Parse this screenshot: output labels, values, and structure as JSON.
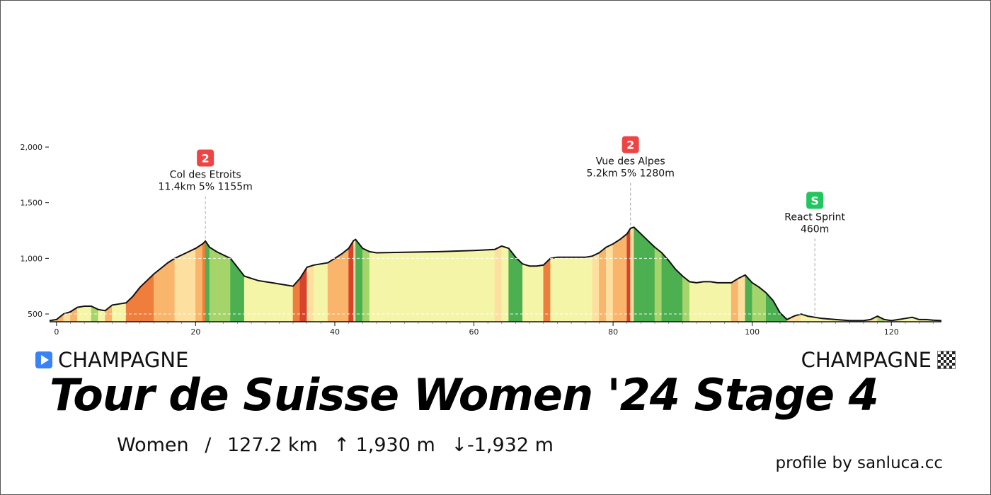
{
  "start": {
    "name": "CHAMPAGNE",
    "icon": "start-flag-icon"
  },
  "finish": {
    "name": "CHAMPAGNE",
    "icon": "checkered-flag-icon"
  },
  "title": "Tour de Suisse Women '24 Stage 4",
  "stats": {
    "category": "Women",
    "separator": "/",
    "distance": "127.2 km",
    "ascent": "↑ 1,930 m",
    "descent": "↓-1,932 m"
  },
  "credit": "profile by sanluca.cc",
  "chart_data": {
    "type": "area",
    "title": "",
    "xlabel": "",
    "ylabel": "",
    "xlim": [
      -1,
      127.2
    ],
    "ylim": [
      420,
      2000
    ],
    "x_ticks": [
      0,
      20,
      40,
      60,
      80,
      100,
      120
    ],
    "y_ticks": [
      500,
      1000,
      1500,
      2000
    ],
    "y_tick_labels": [
      "500",
      "1,000",
      "1,500",
      "2,000"
    ],
    "grid": "horizontal dashed",
    "series": [
      {
        "x": [
          -1,
          0,
          1,
          2,
          3,
          4,
          5,
          6,
          7,
          8,
          9,
          10,
          11,
          12,
          13,
          14,
          15,
          16,
          17,
          18,
          19,
          20,
          21,
          21.4,
          22,
          23,
          24,
          25,
          26,
          27,
          28,
          29,
          30,
          31,
          32,
          33,
          34,
          35,
          36,
          37,
          38,
          39,
          40,
          41,
          42,
          42.7,
          43,
          44,
          45,
          46,
          50,
          55,
          60,
          63,
          64,
          65,
          66,
          67,
          68,
          69,
          70,
          71,
          72,
          73,
          74,
          75,
          76,
          77,
          78,
          79,
          80,
          81,
          82,
          82.5,
          83,
          84,
          85,
          86,
          87,
          88,
          89,
          90,
          91,
          92,
          93,
          94,
          95,
          96,
          97,
          98,
          99,
          100,
          101,
          102,
          103,
          104,
          105,
          106,
          107,
          108,
          109,
          110,
          112,
          114,
          116,
          117,
          118,
          119,
          120,
          121,
          122,
          123,
          124,
          125,
          126,
          127.2
        ],
        "y": [
          440,
          450,
          500,
          520,
          560,
          570,
          570,
          540,
          530,
          580,
          590,
          600,
          660,
          740,
          800,
          860,
          910,
          960,
          1000,
          1030,
          1060,
          1090,
          1130,
          1155,
          1100,
          1060,
          1030,
          1000,
          920,
          840,
          820,
          800,
          790,
          780,
          770,
          760,
          750,
          820,
          920,
          940,
          950,
          960,
          1000,
          1040,
          1090,
          1160,
          1170,
          1090,
          1060,
          1050,
          1055,
          1060,
          1070,
          1080,
          1110,
          1090,
          1010,
          950,
          930,
          930,
          940,
          1000,
          1010,
          1010,
          1010,
          1010,
          1010,
          1020,
          1050,
          1100,
          1130,
          1170,
          1220,
          1270,
          1280,
          1220,
          1160,
          1100,
          1050,
          980,
          900,
          840,
          790,
          780,
          790,
          790,
          780,
          780,
          780,
          820,
          850,
          780,
          740,
          690,
          620,
          510,
          450,
          480,
          500,
          480,
          470,
          460,
          450,
          440,
          440,
          450,
          480,
          450,
          440,
          450,
          460,
          470,
          450,
          450,
          445,
          440
        ]
      }
    ],
    "climb_categories": [
      {
        "x": 21.4,
        "category": "2",
        "name": "Col des Etroits",
        "detail": "11.4km 5% 1155m",
        "color": "#ef4444",
        "label_y": 1800
      },
      {
        "x": 82.5,
        "category": "2",
        "name": "Vue des Alpes",
        "detail": "5.2km 5% 1280m",
        "color": "#ef4444",
        "label_y": 1920
      },
      {
        "x": 109,
        "category": "S",
        "name": "React Sprint",
        "detail": "460m",
        "color": "#22c55e",
        "label_y": 1420
      }
    ],
    "gradient_colors": {
      "steep_down": "#4caf50",
      "down": "#a5d46a",
      "flat": "#f5f5a8",
      "gentle": "#fde0a0",
      "moderate": "#f9b56b",
      "steep": "#ef7d3c",
      "very_steep": "#d9432c"
    }
  }
}
